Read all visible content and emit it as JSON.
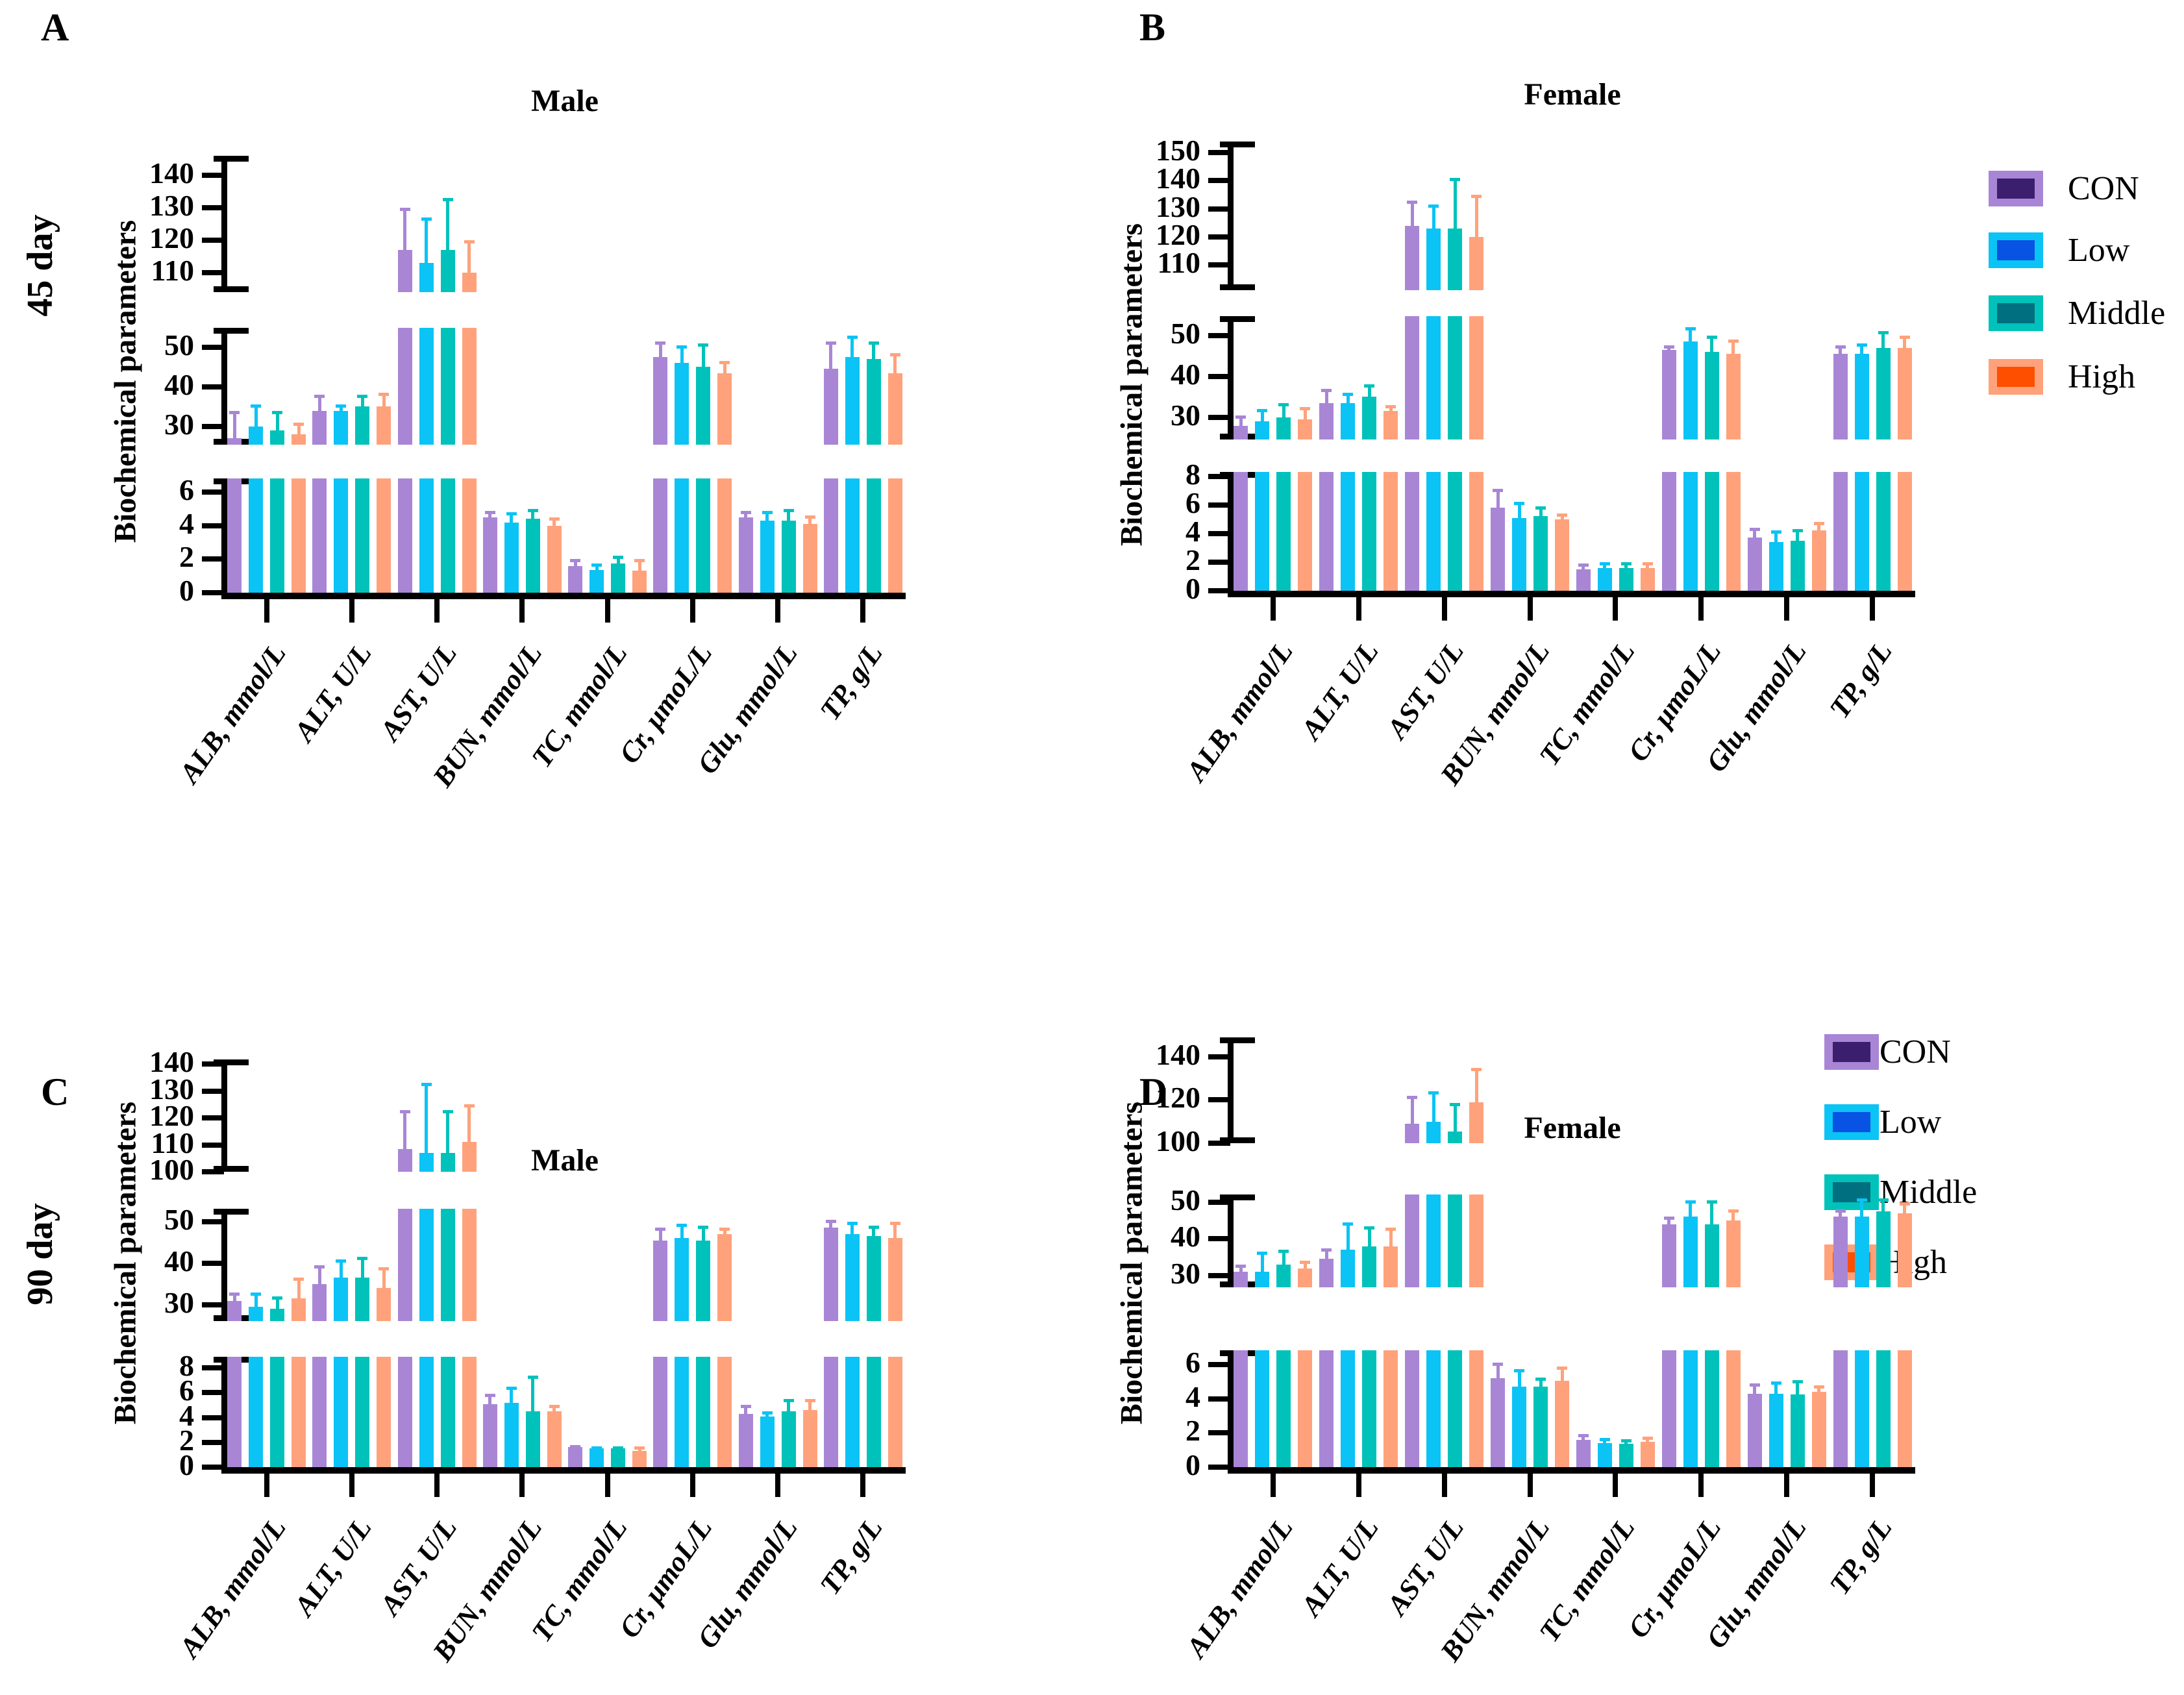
{
  "page": {
    "background": "#ffffff"
  },
  "row_labels": [
    "45 day",
    "90 day"
  ],
  "legend": {
    "items": [
      {
        "label": "CON",
        "bar_color": "#a886d5",
        "inner_color": "#3b1e6e"
      },
      {
        "label": "Low",
        "bar_color": "#0bc3f5",
        "inner_color": "#0853e3"
      },
      {
        "label": "Middle",
        "bar_color": "#00c2ba",
        "inner_color": "#006f7f"
      },
      {
        "label": "High",
        "bar_color": "#ffa27b",
        "inner_color": "#fe4e00"
      }
    ]
  },
  "chart_data": [
    {
      "type": "bar",
      "panel_letter": "A",
      "title": "Male",
      "timepoint": "45 day",
      "ylabel": "Biochemical parameters",
      "categories": [
        "ALB, mmol/L",
        "ALT, U/L",
        "AST, U/L",
        "BUN, mmol/L",
        "TC, mmol/L",
        "Cr, μmoL/L",
        "Glu, mmol/L",
        "TP, g/L"
      ],
      "series": [
        {
          "name": "CON",
          "values": [
            27,
            34,
            117,
            4.5,
            1.6,
            47.5,
            4.5,
            44.5
          ],
          "errors": [
            34,
            38,
            130,
            4.9,
            2.0,
            51.5,
            4.9,
            51.5
          ]
        },
        {
          "name": "Low",
          "values": [
            30,
            34,
            113,
            4.2,
            1.35,
            46,
            4.3,
            47.5
          ],
          "errors": [
            35.5,
            35.5,
            127,
            4.8,
            1.75,
            50.5,
            4.9,
            53
          ]
        },
        {
          "name": "Middle",
          "values": [
            29,
            35,
            117,
            4.4,
            1.75,
            45,
            4.3,
            47
          ],
          "errors": [
            34,
            38,
            133,
            5.0,
            2.2,
            51,
            5.0,
            51.5
          ]
        },
        {
          "name": "High",
          "values": [
            28,
            35,
            110,
            4.0,
            1.3,
            43.5,
            4.1,
            43.5
          ],
          "errors": [
            31,
            38.5,
            120,
            4.5,
            2.0,
            46.5,
            4.6,
            48.5
          ]
        }
      ],
      "broken_y_axis": [
        {
          "range": [
            0,
            6.82
          ],
          "ticks": [
            0,
            2,
            4,
            6
          ]
        },
        {
          "range": [
            25.4,
            54.9
          ],
          "ticks": [
            30,
            40,
            50
          ]
        },
        {
          "range": [
            104,
            146
          ],
          "ticks": [
            110,
            120,
            130,
            140
          ]
        }
      ]
    },
    {
      "type": "bar",
      "panel_letter": "B",
      "title": "Female",
      "timepoint": "45 day",
      "ylabel": "Biochemical parameters",
      "categories": [
        "ALB, mmol/L",
        "ALT, U/L",
        "AST, U/L",
        "BUN, mmol/L",
        "TC, mmol/L",
        "Cr, μmoL/L",
        "Glu, mmol/L",
        "TP, g/L"
      ],
      "series": [
        {
          "name": "CON",
          "values": [
            28,
            33.5,
            124,
            5.8,
            1.5,
            46.5,
            3.7,
            45.5
          ],
          "errors": [
            30.5,
            37,
            133,
            7.1,
            1.9,
            47.5,
            4.4,
            47.5
          ]
        },
        {
          "name": "Low",
          "values": [
            29,
            33.5,
            123,
            5.1,
            1.6,
            48.5,
            3.4,
            45.5
          ],
          "errors": [
            32,
            36,
            131.5,
            6.2,
            2.0,
            52,
            4.2,
            48
          ]
        },
        {
          "name": "Middle",
          "values": [
            30,
            35,
            123,
            5.2,
            1.6,
            46,
            3.5,
            47
          ],
          "errors": [
            33.5,
            38,
            141,
            5.9,
            2.0,
            50,
            4.3,
            51
          ]
        },
        {
          "name": "High",
          "values": [
            29.5,
            31.5,
            120,
            5.0,
            1.6,
            45.5,
            4.2,
            47
          ],
          "errors": [
            32.5,
            33,
            135,
            5.4,
            2.0,
            49,
            4.8,
            50
          ]
        }
      ],
      "broken_y_axis": [
        {
          "range": [
            0,
            8.3
          ],
          "ticks": [
            0,
            2,
            4,
            6,
            8
          ]
        },
        {
          "range": [
            24.6,
            54.7
          ],
          "ticks": [
            30,
            40,
            50
          ]
        },
        {
          "range": [
            101,
            154
          ],
          "ticks": [
            110,
            120,
            130,
            140,
            150
          ]
        }
      ]
    },
    {
      "type": "bar",
      "panel_letter": "C",
      "title": "Male",
      "timepoint": "90 day",
      "ylabel": "Biochemical parameters",
      "categories": [
        "ALB, mmol/L",
        "ALT, U/L",
        "AST, U/L",
        "BUN, mmol/L",
        "TC, mmol/L",
        "Cr, μmoL/L",
        "Glu, mmol/L",
        "TP, g/L"
      ],
      "series": [
        {
          "name": "CON",
          "values": [
            31,
            35,
            108.5,
            5.1,
            1.6,
            45.5,
            4.3,
            48.5
          ],
          "errors": [
            33,
            39.5,
            123,
            5.9,
            1.8,
            48.5,
            5.0,
            50.5
          ]
        },
        {
          "name": "Low",
          "values": [
            29.5,
            36.5,
            107,
            5.2,
            1.5,
            46,
            4.1,
            47
          ],
          "errors": [
            33,
            41,
            133,
            6.5,
            1.7,
            49.5,
            4.5,
            50
          ]
        },
        {
          "name": "Middle",
          "values": [
            29,
            36.5,
            107,
            4.5,
            1.5,
            45.5,
            4.5,
            46.5
          ],
          "errors": [
            32,
            41.5,
            123,
            7.4,
            1.7,
            49,
            5.5,
            49
          ]
        },
        {
          "name": "High",
          "values": [
            31.5,
            34,
            111,
            4.5,
            1.3,
            47,
            4.6,
            46
          ],
          "errors": [
            36.5,
            39,
            125,
            5.0,
            1.7,
            48.5,
            5.5,
            50
          ]
        }
      ],
      "broken_y_axis": [
        {
          "range": [
            0,
            8.9
          ],
          "ticks": [
            0,
            2,
            4,
            6,
            8
          ]
        },
        {
          "range": [
            26.1,
            53.1
          ],
          "ticks": [
            30,
            40,
            50
          ]
        },
        {
          "range": [
            100,
            141.7
          ],
          "ticks": [
            100,
            110,
            120,
            130,
            140
          ]
        }
      ]
    },
    {
      "type": "bar",
      "panel_letter": "D",
      "title": "Female",
      "timepoint": "90 day",
      "ylabel": "Biochemical parameters",
      "categories": [
        "ALB, mmol/L",
        "ALT, U/L",
        "AST, U/L",
        "BUN, mmol/L",
        "TC, mmol/L",
        "Cr, μmoL/L",
        "Glu, mmol/L",
        "TP, g/L"
      ],
      "series": [
        {
          "name": "CON",
          "values": [
            31,
            34.5,
            109,
            5.2,
            1.6,
            44,
            4.3,
            46
          ],
          "errors": [
            33,
            37.5,
            122,
            6.1,
            1.95,
            46,
            4.9,
            48
          ]
        },
        {
          "name": "Low",
          "values": [
            31,
            37,
            110,
            4.7,
            1.4,
            46,
            4.3,
            46
          ],
          "errors": [
            36.5,
            44.5,
            124,
            5.75,
            1.7,
            50.5,
            5.0,
            51
          ]
        },
        {
          "name": "Middle",
          "values": [
            33,
            38,
            105.5,
            4.7,
            1.35,
            44,
            4.25,
            47.5
          ],
          "errors": [
            37,
            43.5,
            118.5,
            5.25,
            1.65,
            50.5,
            5.1,
            51
          ]
        },
        {
          "name": "High",
          "values": [
            32,
            38,
            119,
            5.05,
            1.5,
            45,
            4.4,
            47
          ],
          "errors": [
            34,
            43,
            135,
            5.9,
            1.8,
            48,
            4.8,
            50
          ]
        }
      ],
      "broken_y_axis": [
        {
          "range": [
            0,
            6.84
          ],
          "ticks": [
            0,
            2,
            4,
            6
          ]
        },
        {
          "range": [
            26.8,
            52.1
          ],
          "ticks": [
            30,
            40,
            50
          ]
        },
        {
          "range": [
            100,
            149
          ],
          "ticks": [
            100,
            120,
            140
          ]
        }
      ]
    }
  ]
}
